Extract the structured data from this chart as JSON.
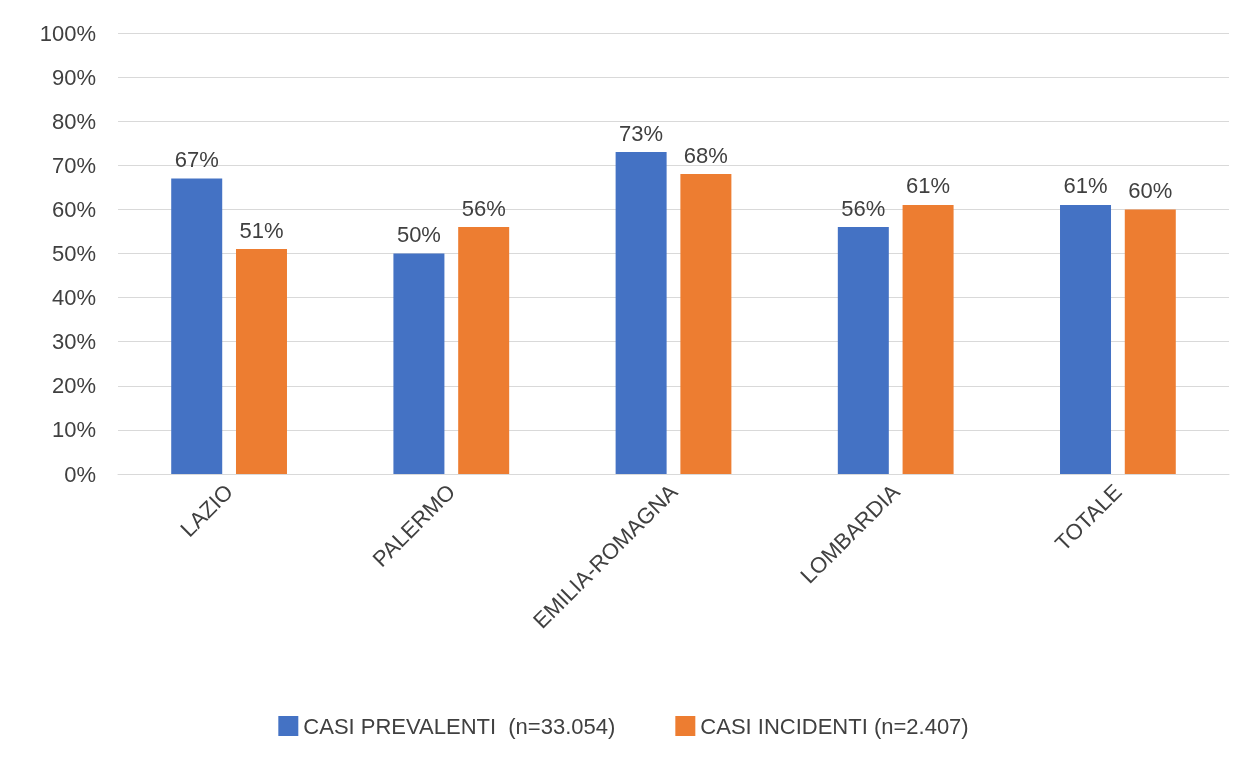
{
  "chart_data": {
    "type": "bar",
    "categories": [
      "LAZIO",
      "PALERMO",
      "EMILIA-ROMAGNA",
      "LOMBARDIA",
      "TOTALE"
    ],
    "series": [
      {
        "name": "CASI PREVALENTI  (n=33.054)",
        "color": "#4472c4",
        "values": [
          67,
          50,
          73,
          56,
          61
        ],
        "value_labels": [
          "67%",
          "50%",
          "73%",
          "56%",
          "61%"
        ]
      },
      {
        "name": "CASI INCIDENTI (n=2.407)",
        "color": "#ed7d31",
        "values": [
          51,
          56,
          68,
          61,
          60
        ],
        "value_labels": [
          "51%",
          "56%",
          "68%",
          "61%",
          "60%"
        ]
      }
    ],
    "ylim": [
      0,
      100
    ],
    "yticks": [
      {
        "value": 0,
        "label": "0%"
      },
      {
        "value": 10,
        "label": "10%"
      },
      {
        "value": 20,
        "label": "20%"
      },
      {
        "value": 30,
        "label": "30%"
      },
      {
        "value": 40,
        "label": "40%"
      },
      {
        "value": 50,
        "label": "50%"
      },
      {
        "value": 60,
        "label": "60%"
      },
      {
        "value": 70,
        "label": "70%"
      },
      {
        "value": 80,
        "label": "80%"
      },
      {
        "value": 90,
        "label": "90%"
      },
      {
        "value": 100,
        "label": "100%"
      }
    ],
    "grid": "y",
    "legend": "bottom"
  }
}
